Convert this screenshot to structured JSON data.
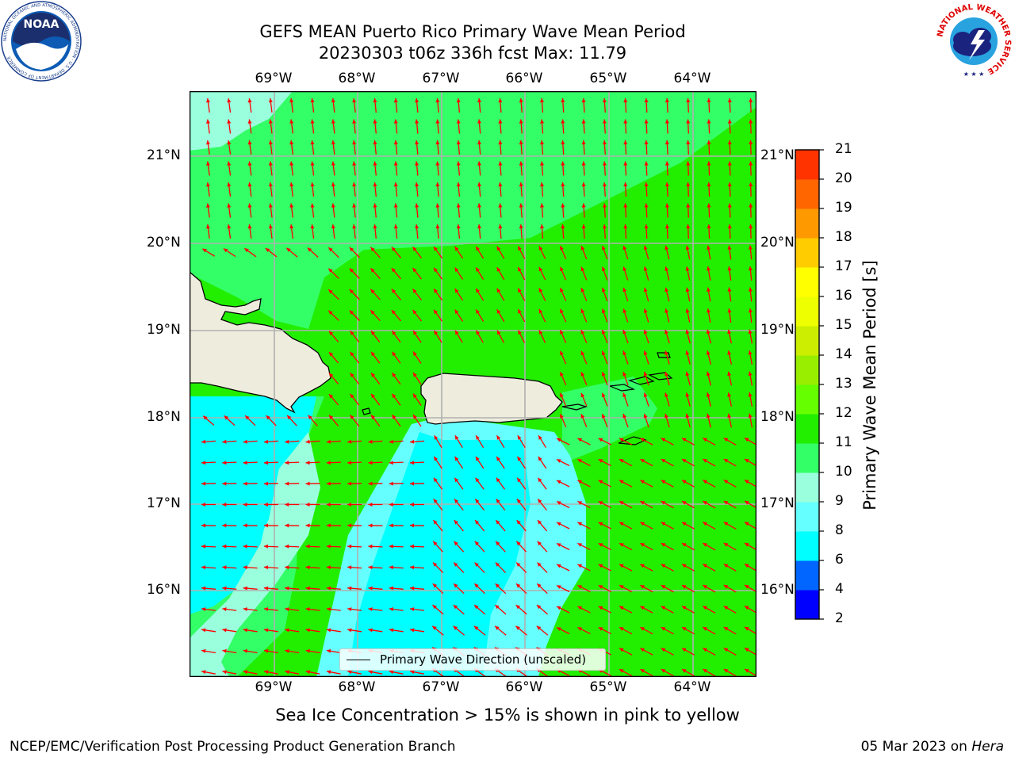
{
  "header": {
    "title_line1": "GEFS MEAN Puerto Rico Primary Wave Mean Period",
    "title_line2": "20230303 t06z 336h fcst   Max: 11.79"
  },
  "axes": {
    "lon_labels": [
      "69°W",
      "68°W",
      "67°W",
      "66°W",
      "65°W",
      "64°W"
    ],
    "lat_labels": [
      "21°N",
      "20°N",
      "19°N",
      "18°N",
      "17°N",
      "16°N"
    ]
  },
  "legend": {
    "label": "Primary Wave Direction (unscaled)"
  },
  "colorbar": {
    "title": "Primary Wave Mean Period [s]",
    "ticks": [
      "2",
      "4",
      "6",
      "8",
      "9",
      "10",
      "11",
      "12",
      "13",
      "14",
      "15",
      "16",
      "17",
      "18",
      "19",
      "20",
      "21"
    ],
    "colors": [
      "#0000ff",
      "#0066ff",
      "#00ffff",
      "#66ffff",
      "#99ffdd",
      "#33ff66",
      "#22ee00",
      "#66ff00",
      "#99ee00",
      "#ccee00",
      "#eeff00",
      "#ffff00",
      "#ffcc00",
      "#ff9900",
      "#ff6600",
      "#ff3300",
      "#ff0000"
    ]
  },
  "colors": {
    "land": "#eeecdc",
    "arrow": "#ff0000",
    "grid": "#b0b0b0"
  },
  "logos": {
    "left": "NOAA",
    "left_ring": "NATIONAL OCEANIC AND ATMOSPHERIC ADMINISTRATION · U.S. DEPARTMENT OF COMMERCE",
    "right": "NATIONAL WEATHER SERVICE"
  },
  "note": "Sea Ice Concentration > 15% is shown in pink to yellow",
  "footer": {
    "left": "NCEP/EMC/Verification Post Processing Product Generation Branch",
    "date": "05 Mar 2023 on ",
    "machine": "Hera"
  }
}
